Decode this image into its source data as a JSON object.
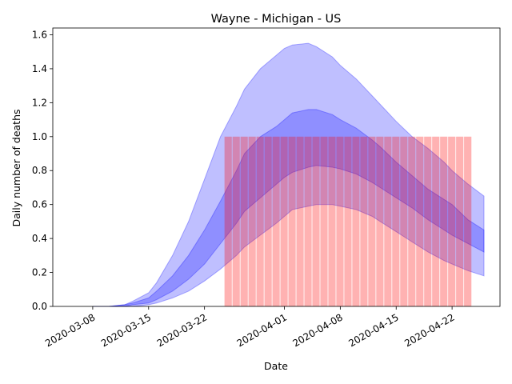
{
  "chart_data": {
    "type": "area",
    "title": "Wayne - Michigan - US",
    "xlabel": "Date",
    "ylabel": "Daily number of deaths",
    "x_start": "2020-03-03",
    "x_end": "2020-04-28",
    "ylim": [
      0,
      1.64
    ],
    "x_ticks": [
      "2020-03-08",
      "2020-03-15",
      "2020-03-22",
      "2020-04-01",
      "2020-04-08",
      "2020-04-15",
      "2020-04-22"
    ],
    "y_ticks": [
      "0.0",
      "0.2",
      "0.4",
      "0.6",
      "0.8",
      "1.0",
      "1.2",
      "1.4",
      "1.6"
    ],
    "grid": false,
    "colors": {
      "band": "#0000ff",
      "bars": "#ff0000",
      "axis": "#000000"
    },
    "bands": [
      {
        "x": [
          "2020-03-08",
          "2020-03-10",
          "2020-03-12",
          "2020-03-13",
          "2020-03-15",
          "2020-03-16",
          "2020-03-18",
          "2020-03-20",
          "2020-03-22",
          "2020-03-24",
          "2020-03-26",
          "2020-03-27",
          "2020-03-29",
          "2020-03-31",
          "2020-04-01",
          "2020-04-02",
          "2020-04-04",
          "2020-04-05",
          "2020-04-07",
          "2020-04-08",
          "2020-04-10",
          "2020-04-12",
          "2020-04-13",
          "2020-04-15",
          "2020-04-17",
          "2020-04-19",
          "2020-04-21",
          "2020-04-22",
          "2020-04-24",
          "2020-04-26"
        ],
        "upper": [
          0.0,
          0.0,
          0.01,
          0.03,
          0.08,
          0.14,
          0.3,
          0.5,
          0.75,
          1.0,
          1.18,
          1.28,
          1.4,
          1.48,
          1.52,
          1.54,
          1.55,
          1.53,
          1.47,
          1.42,
          1.34,
          1.24,
          1.19,
          1.09,
          1.0,
          0.93,
          0.85,
          0.8,
          0.72,
          0.65
        ],
        "lower": [
          0.0,
          0.0,
          0.0,
          0.0,
          0.01,
          0.02,
          0.05,
          0.09,
          0.15,
          0.22,
          0.3,
          0.35,
          0.42,
          0.49,
          0.53,
          0.57,
          0.59,
          0.6,
          0.6,
          0.59,
          0.57,
          0.53,
          0.5,
          0.44,
          0.38,
          0.32,
          0.27,
          0.25,
          0.21,
          0.18
        ]
      },
      {
        "x": [
          "2020-03-08",
          "2020-03-10",
          "2020-03-12",
          "2020-03-13",
          "2020-03-15",
          "2020-03-16",
          "2020-03-18",
          "2020-03-20",
          "2020-03-22",
          "2020-03-24",
          "2020-03-26",
          "2020-03-27",
          "2020-03-29",
          "2020-03-31",
          "2020-04-01",
          "2020-04-02",
          "2020-04-04",
          "2020-04-05",
          "2020-04-07",
          "2020-04-08",
          "2020-04-10",
          "2020-04-12",
          "2020-04-13",
          "2020-04-15",
          "2020-04-17",
          "2020-04-19",
          "2020-04-21",
          "2020-04-22",
          "2020-04-24",
          "2020-04-26"
        ],
        "upper": [
          0.0,
          0.0,
          0.01,
          0.02,
          0.05,
          0.09,
          0.18,
          0.3,
          0.45,
          0.62,
          0.8,
          0.9,
          1.0,
          1.06,
          1.1,
          1.14,
          1.16,
          1.16,
          1.13,
          1.1,
          1.05,
          0.98,
          0.94,
          0.85,
          0.77,
          0.69,
          0.63,
          0.6,
          0.51,
          0.45
        ],
        "lower": [
          0.0,
          0.0,
          0.0,
          0.01,
          0.02,
          0.04,
          0.09,
          0.16,
          0.25,
          0.37,
          0.49,
          0.56,
          0.64,
          0.72,
          0.76,
          0.79,
          0.82,
          0.83,
          0.82,
          0.81,
          0.78,
          0.73,
          0.7,
          0.64,
          0.58,
          0.51,
          0.45,
          0.42,
          0.37,
          0.32
        ]
      }
    ],
    "bars": {
      "x_start": "2020-03-25",
      "x_end": "2020-04-24",
      "value": 1.0
    }
  }
}
